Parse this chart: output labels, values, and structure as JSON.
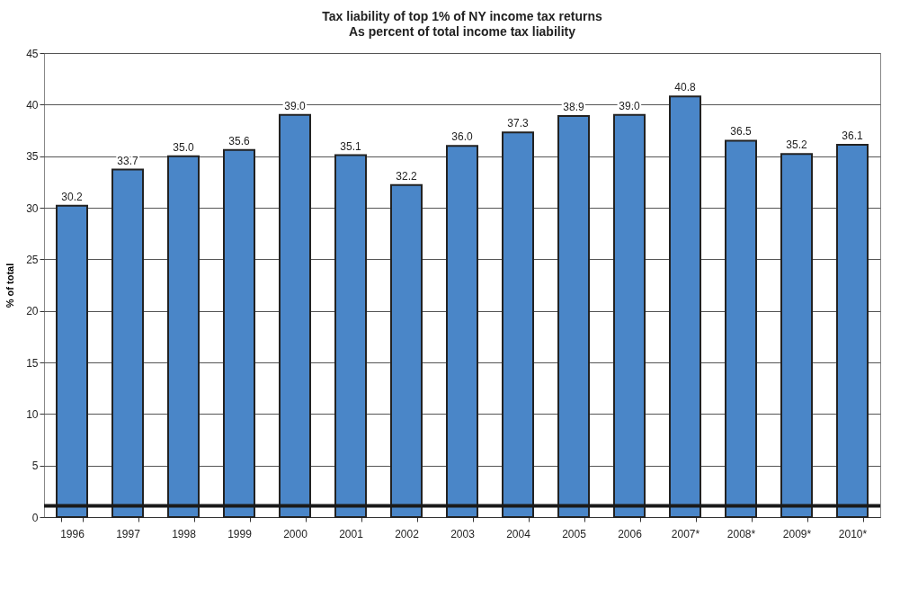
{
  "chart_data": {
    "type": "bar",
    "title": "Tax liability of top 1% of NY income tax returns",
    "subtitle": "As percent of total income tax liability",
    "ylabel": "% of total",
    "categories": [
      "1996",
      "1997",
      "1998",
      "1999",
      "2000",
      "2001",
      "2002",
      "2003",
      "2004",
      "2005",
      "2006",
      "2007*",
      "2008*",
      "2009*",
      "2010*"
    ],
    "values": [
      30.2,
      33.7,
      35.0,
      35.6,
      39.0,
      35.1,
      32.2,
      36.0,
      37.3,
      38.9,
      39.0,
      40.8,
      36.5,
      35.2,
      36.1
    ],
    "color": "#4a86c8",
    "value_labels": [
      "30.2",
      "33.7",
      "35.0",
      "35.6",
      "39.0",
      "35.1",
      "32.2",
      "36.0",
      "37.3",
      "38.9",
      "39.0",
      "40.8",
      "36.5",
      "35.2",
      "36.1"
    ],
    "ylim": [
      0,
      45
    ],
    "yticks": [
      0,
      5,
      10,
      15,
      20,
      25,
      30,
      35,
      40,
      45
    ],
    "grid": "y",
    "ref_lines": [
      {
        "axis": "y",
        "value": 1.1,
        "color": "#1a1a1a"
      }
    ]
  }
}
